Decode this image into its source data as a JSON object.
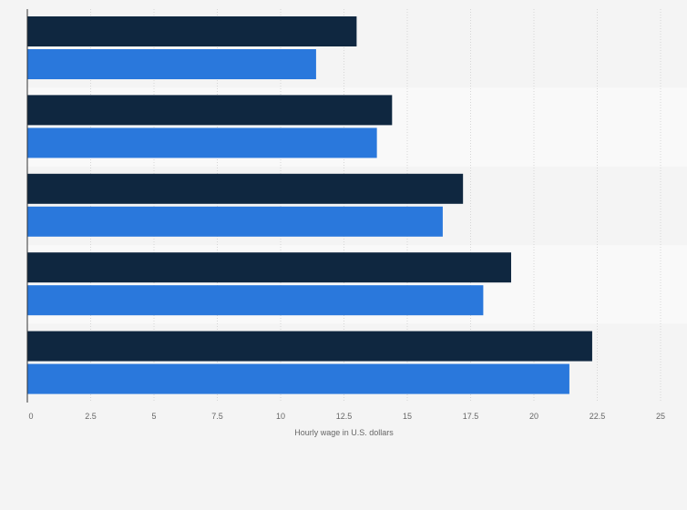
{
  "chart_data": {
    "type": "bar",
    "orientation": "horizontal",
    "title": "",
    "xlabel": "Hourly wage in U.S. dollars",
    "ylabel": "",
    "xlim": [
      0,
      25
    ],
    "x_ticks": [
      0,
      2.5,
      5,
      7.5,
      10,
      12.5,
      15,
      17.5,
      20,
      22.5,
      25
    ],
    "x_tick_labels": [
      "0",
      "2.5",
      "5",
      "7.5",
      "10",
      "12.5",
      "15",
      "17.5",
      "20",
      "22.5",
      "25"
    ],
    "grid": true,
    "legend": "none",
    "categories": [
      "",
      "",
      "",
      "",
      ""
    ],
    "series": [
      {
        "color": "#0f2740",
        "values": [
          13.0,
          14.4,
          17.2,
          19.1,
          22.3
        ]
      },
      {
        "color": "#2a78dc",
        "values": [
          11.4,
          13.8,
          16.4,
          18.0,
          21.4
        ]
      }
    ]
  },
  "colors": {
    "background": "#f4f4f4",
    "band_alt": "#f9f9f9",
    "grid": "#d6d6d6",
    "axis": "#333333"
  }
}
